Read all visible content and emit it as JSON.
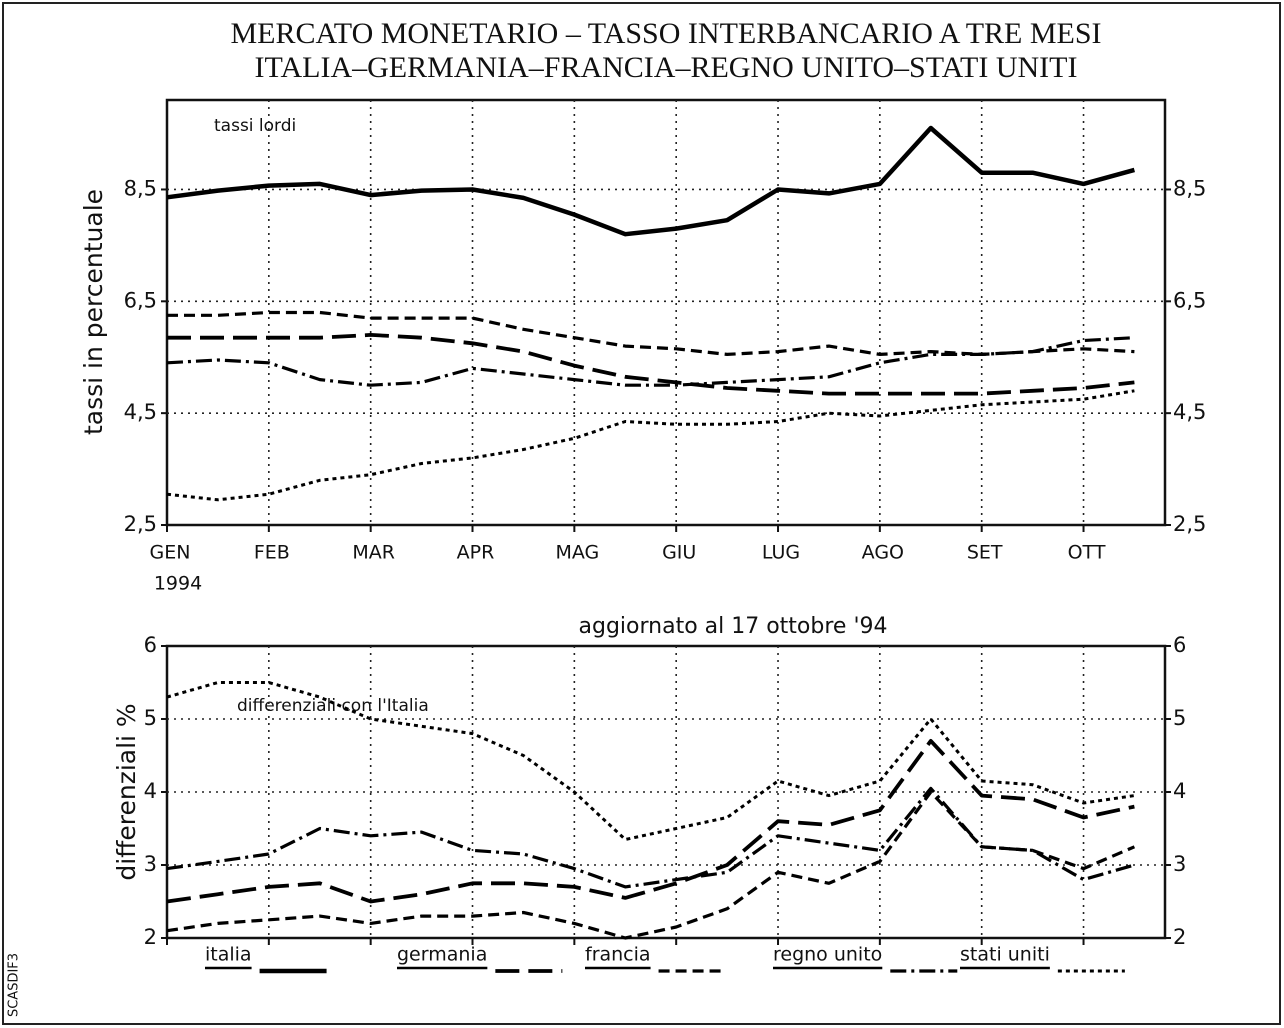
{
  "doc_code": "SCASDIF3",
  "chart_data": [
    {
      "type": "line",
      "title": "MERCATO MONETARIO – TASSO INTERBANCARIO A TRE MESI",
      "subtitle": "ITALIA–GERMANIA–FRANCIA–REGNO UNITO–STATI UNITI",
      "ylabel": "tassi in percentuale",
      "annotation": "tassi lordi",
      "x_sublabel": "1994",
      "xlim": [
        0,
        9.8
      ],
      "xticks": [
        {
          "value": 0,
          "label": "GEN"
        },
        {
          "value": 1,
          "label": "FEB"
        },
        {
          "value": 2,
          "label": "MAR"
        },
        {
          "value": 3,
          "label": "APR"
        },
        {
          "value": 4,
          "label": "MAG"
        },
        {
          "value": 5,
          "label": "GIU"
        },
        {
          "value": 6,
          "label": "LUG"
        },
        {
          "value": 7,
          "label": "AGO"
        },
        {
          "value": 8,
          "label": "SET"
        },
        {
          "value": 9,
          "label": "OTT"
        }
      ],
      "ylim": [
        2.5,
        10.1
      ],
      "yticks": [
        {
          "value": 2.5,
          "label": "2,5"
        },
        {
          "value": 4.5,
          "label": "4,5"
        },
        {
          "value": 6.5,
          "label": "6,5"
        },
        {
          "value": 8.5,
          "label": "8,5"
        }
      ],
      "grid": true,
      "x": [
        0,
        0.5,
        1,
        1.5,
        2,
        2.5,
        3,
        3.5,
        4,
        4.5,
        5,
        5.5,
        6,
        6.5,
        7,
        7.5,
        8,
        8.5,
        9,
        9.5
      ],
      "series": [
        {
          "name": "italia",
          "color": "#000000",
          "dash": "solid",
          "values": [
            8.36,
            8.48,
            8.57,
            8.6,
            8.4,
            8.48,
            8.5,
            8.35,
            8.05,
            7.7,
            7.8,
            7.95,
            8.5,
            8.43,
            8.6,
            9.6,
            8.8,
            8.8,
            8.6,
            8.85
          ]
        },
        {
          "name": "germania",
          "color": "#000000",
          "dash": "long-dash",
          "values": [
            5.85,
            5.85,
            5.85,
            5.85,
            5.9,
            5.85,
            5.75,
            5.6,
            5.35,
            5.15,
            5.05,
            4.95,
            4.9,
            4.85,
            4.85,
            4.85,
            4.85,
            4.9,
            4.95,
            5.05
          ]
        },
        {
          "name": "francia",
          "color": "#000000",
          "dash": "dash",
          "values": [
            6.25,
            6.25,
            6.3,
            6.3,
            6.2,
            6.2,
            6.2,
            6.0,
            5.85,
            5.7,
            5.65,
            5.55,
            5.6,
            5.7,
            5.55,
            5.6,
            5.55,
            5.6,
            5.65,
            5.6
          ]
        },
        {
          "name": "regno unito",
          "color": "#000000",
          "dash": "dash-dot",
          "values": [
            5.4,
            5.45,
            5.4,
            5.1,
            5.0,
            5.05,
            5.3,
            5.2,
            5.1,
            5.0,
            5.0,
            5.05,
            5.1,
            5.15,
            5.4,
            5.55,
            5.55,
            5.6,
            5.8,
            5.85
          ]
        },
        {
          "name": "stati uniti",
          "color": "#000000",
          "dash": "dot",
          "values": [
            3.05,
            2.95,
            3.05,
            3.3,
            3.4,
            3.6,
            3.7,
            3.85,
            4.05,
            4.35,
            4.3,
            4.3,
            4.35,
            4.5,
            4.45,
            4.55,
            4.65,
            4.7,
            4.75,
            4.9
          ]
        }
      ]
    },
    {
      "type": "line",
      "title": "aggiornato al 17 ottobre '94",
      "ylabel": "differenziali %",
      "annotation": "differenziali con l'Italia",
      "xlim": [
        0,
        9.8
      ],
      "xticks": [
        0,
        1,
        2,
        3,
        4,
        5,
        6,
        7,
        8,
        9
      ],
      "show_xtick_labels": false,
      "ylim": [
        2,
        6
      ],
      "yticks": [
        2,
        3,
        4,
        5,
        6
      ],
      "grid": true,
      "x": [
        0,
        0.5,
        1,
        1.5,
        2,
        2.5,
        3,
        3.5,
        4,
        4.5,
        5,
        5.5,
        6,
        6.5,
        7,
        7.5,
        8,
        8.5,
        9,
        9.5
      ],
      "series": [
        {
          "color": "#000000",
          "dash": "long-dash",
          "values": [
            2.5,
            2.6,
            2.7,
            2.75,
            2.5,
            2.6,
            2.75,
            2.75,
            2.7,
            2.55,
            2.75,
            3.0,
            3.6,
            3.55,
            3.75,
            4.7,
            3.95,
            3.9,
            3.65,
            3.8
          ]
        },
        {
          "color": "#000000",
          "dash": "dash",
          "values": [
            2.1,
            2.2,
            2.25,
            2.3,
            2.2,
            2.3,
            2.3,
            2.35,
            2.2,
            2.0,
            2.15,
            2.4,
            2.9,
            2.75,
            3.05,
            4.0,
            3.25,
            3.2,
            2.95,
            3.25
          ]
        },
        {
          "color": "#000000",
          "dash": "dash-dot",
          "values": [
            2.95,
            3.05,
            3.15,
            3.5,
            3.4,
            3.45,
            3.2,
            3.15,
            2.95,
            2.7,
            2.8,
            2.9,
            3.4,
            3.3,
            3.2,
            4.05,
            3.25,
            3.2,
            2.8,
            3.0
          ]
        },
        {
          "color": "#000000",
          "dash": "dot",
          "values": [
            5.3,
            5.5,
            5.5,
            5.3,
            5.0,
            4.9,
            4.8,
            4.5,
            4.0,
            3.35,
            3.5,
            3.65,
            4.15,
            3.95,
            4.15,
            5.0,
            4.15,
            4.1,
            3.85,
            3.95
          ]
        }
      ]
    }
  ]
}
